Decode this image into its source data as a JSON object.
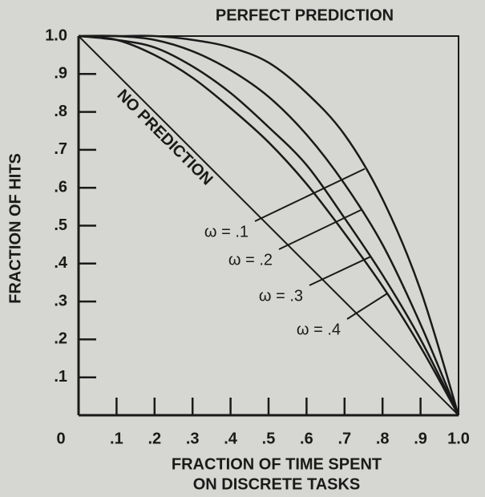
{
  "chart_data": {
    "type": "line",
    "xlabel": [
      "FRACTION OF TIME SPENT",
      "ON DISCRETE TASKS"
    ],
    "ylabel": "FRACTION OF HITS",
    "xlim": [
      0,
      1
    ],
    "ylim": [
      0,
      1
    ],
    "xticks": [
      0,
      {
        "value": 0.1,
        "label": ".1"
      },
      {
        "value": 0.2,
        "label": ".2"
      },
      {
        "value": 0.3,
        "label": ".3"
      },
      {
        "value": 0.4,
        "label": ".4"
      },
      {
        "value": 0.5,
        "label": ".5"
      },
      {
        "value": 0.6,
        "label": ".6"
      },
      {
        "value": 0.7,
        "label": ".7"
      },
      {
        "value": 0.8,
        "label": ".8"
      },
      {
        "value": 0.9,
        "label": ".9"
      },
      {
        "value": 1,
        "label": "1.0"
      }
    ],
    "yticks": [
      {
        "value": 0.1,
        "label": ".1"
      },
      {
        "value": 0.2,
        "label": ".2"
      },
      {
        "value": 0.3,
        "label": ".3"
      },
      {
        "value": 0.4,
        "label": ".4"
      },
      {
        "value": 0.5,
        "label": ".5"
      },
      {
        "value": 0.6,
        "label": ".6"
      },
      {
        "value": 0.7,
        "label": ".7"
      },
      {
        "value": 0.8,
        "label": ".8"
      },
      {
        "value": 0.9,
        "label": ".9"
      },
      {
        "value": 1,
        "label": "1.0"
      }
    ],
    "series": [
      {
        "name": "PERFECT PREDICTION",
        "color": "#1a1a1a",
        "x": [
          0,
          1,
          1
        ],
        "values": [
          1,
          1,
          0
        ]
      },
      {
        "name": "NO PREDICTION",
        "color": "#1a1a1a",
        "x": [
          0,
          1
        ],
        "values": [
          1,
          0
        ]
      },
      {
        "name": "ω = .1",
        "color": "#1a1a1a",
        "x": [
          0,
          0.1,
          0.2,
          0.3,
          0.4,
          0.5,
          0.6,
          0.7,
          0.8,
          0.9,
          1
        ],
        "values": [
          1,
          1,
          1,
          0.99,
          0.97,
          0.93,
          0.85,
          0.74,
          0.57,
          0.33,
          0
        ]
      },
      {
        "name": "ω = .2",
        "color": "#1a1a1a",
        "x": [
          0,
          0.1,
          0.2,
          0.3,
          0.4,
          0.5,
          0.6,
          0.7,
          0.8,
          0.9,
          1
        ],
        "values": [
          1,
          1,
          0.99,
          0.96,
          0.91,
          0.84,
          0.74,
          0.61,
          0.45,
          0.24,
          0
        ]
      },
      {
        "name": "ω = .3",
        "color": "#1a1a1a",
        "x": [
          0,
          0.1,
          0.2,
          0.3,
          0.4,
          0.5,
          0.6,
          0.7,
          0.8,
          0.9,
          1
        ],
        "values": [
          1,
          0.99,
          0.97,
          0.92,
          0.85,
          0.76,
          0.66,
          0.52,
          0.37,
          0.2,
          0
        ]
      },
      {
        "name": "ω = .4",
        "color": "#1a1a1a",
        "x": [
          0,
          0.1,
          0.2,
          0.3,
          0.4,
          0.5,
          0.6,
          0.7,
          0.8,
          0.9,
          1
        ],
        "values": [
          1,
          0.99,
          0.95,
          0.89,
          0.81,
          0.72,
          0.61,
          0.48,
          0.34,
          0.18,
          0
        ]
      }
    ]
  }
}
